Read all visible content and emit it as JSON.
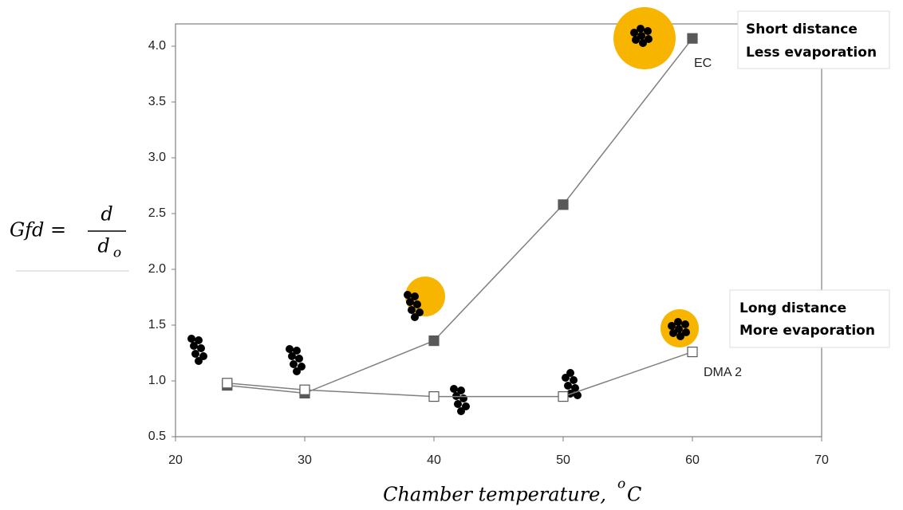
{
  "chart_data": {
    "type": "line",
    "xlim": [
      20,
      70
    ],
    "xticks": [
      20,
      30,
      40,
      50,
      60,
      70
    ],
    "ylim": [
      0.5,
      4.2
    ],
    "yticks": [
      0.5,
      {
        "value": 1,
        "label": "1.0"
      },
      1.5,
      {
        "value": 2,
        "label": "2.0"
      },
      2.5,
      {
        "value": 3,
        "label": "3.0"
      },
      3.5,
      {
        "value": 4,
        "label": "4.0"
      }
    ],
    "y_label": {
      "lhs": "Gfd =",
      "numerator": "d",
      "denominator": "d",
      "denominator_sub": "o"
    },
    "x_label": {
      "text": "Chamber temperature,",
      "sup": "o",
      "unit": "C"
    },
    "annotations": [
      {
        "lines": [
          "Short distance",
          "Less evaporation"
        ]
      },
      {
        "lines": [
          "Long distance",
          "More evaporation"
        ]
      }
    ],
    "series": [
      {
        "name": "EC",
        "color": "#7f7f7f",
        "marker_fill": "#595959",
        "x": [
          24,
          30,
          40,
          50,
          60
        ],
        "values": [
          0.96,
          0.89,
          1.36,
          2.58,
          4.07
        ]
      },
      {
        "name": "DMA 2",
        "color": "#7f7f7f",
        "marker_fill": "#ffffff",
        "x": [
          24,
          30,
          40,
          50,
          60
        ],
        "values": [
          0.98,
          0.92,
          0.86,
          0.86,
          1.26
        ]
      }
    ]
  }
}
